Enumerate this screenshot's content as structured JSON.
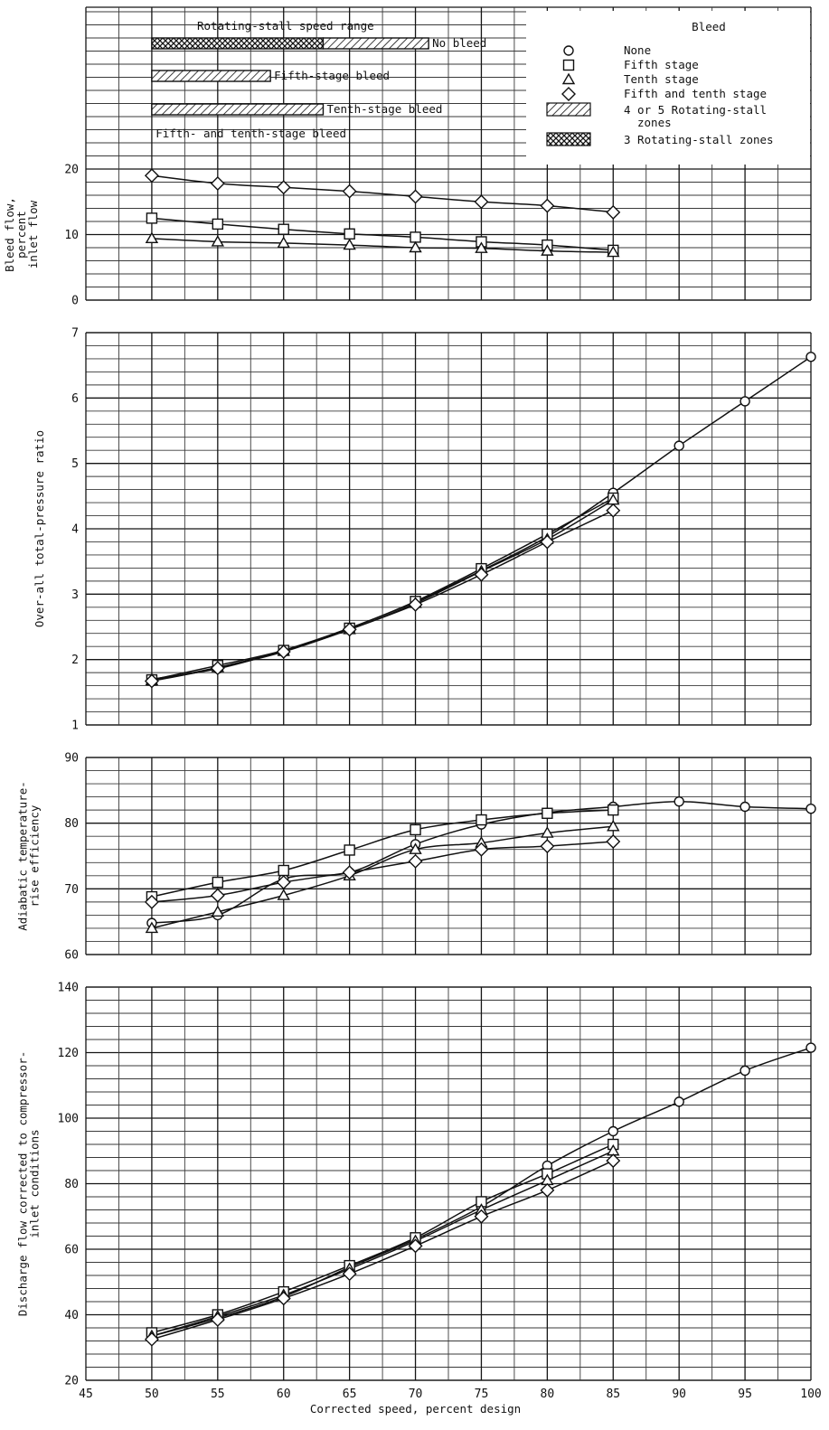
{
  "chart_data": {
    "type": "line",
    "x": [
      50,
      55,
      60,
      65,
      70,
      75,
      80,
      85,
      90,
      95,
      100
    ],
    "xlabel": "Corrected speed, percent design",
    "xlim": [
      45,
      100
    ],
    "xticks": [
      45,
      50,
      55,
      60,
      65,
      70,
      75,
      80,
      85,
      90,
      95,
      100
    ],
    "legend": {
      "title": "Bleed",
      "entries": [
        {
          "label": "None",
          "marker": "circle"
        },
        {
          "label": "Fifth stage",
          "marker": "square"
        },
        {
          "label": "Tenth stage",
          "marker": "triangle"
        },
        {
          "label": "Fifth and tenth stage",
          "marker": "diamond"
        }
      ],
      "hatch_entries": [
        {
          "label_lines": [
            "4 or 5 Rotating-stall",
            "zones"
          ],
          "pattern": "diagonal"
        },
        {
          "label_lines": [
            "3 Rotating-stall zones"
          ],
          "pattern": "crosshatch"
        }
      ]
    },
    "stall_range": {
      "title": "Rotating-stall speed range",
      "bars": [
        {
          "label": "No bleed",
          "segments": [
            {
              "from": 50,
              "to": 63,
              "pattern": "crosshatch"
            },
            {
              "from": 63,
              "to": 71,
              "pattern": "diagonal"
            }
          ]
        },
        {
          "label": "Fifth-stage bleed",
          "segments": [
            {
              "from": 50,
              "to": 59,
              "pattern": "diagonal"
            }
          ]
        },
        {
          "label": "Tenth-stage bleed",
          "segments": [
            {
              "from": 50,
              "to": 63,
              "pattern": "diagonal"
            }
          ]
        },
        {
          "label": "Fifth- and tenth-stage bleed",
          "segments": []
        }
      ]
    },
    "panels": [
      {
        "id": "bleed",
        "ylabel_lines": [
          "Bleed flow,",
          "percent",
          "inlet flow"
        ],
        "ylim": [
          0,
          20
        ],
        "yticks": [
          0,
          10,
          20
        ],
        "series": [
          {
            "name": "Fifth and tenth stage",
            "marker": "diamond",
            "x": [
              50,
              55,
              60,
              65,
              70,
              75,
              80,
              85
            ],
            "y": [
              19.0,
              17.8,
              17.2,
              16.6,
              15.8,
              15.0,
              14.4,
              13.4
            ]
          },
          {
            "name": "Fifth stage",
            "marker": "square",
            "x": [
              50,
              55,
              60,
              65,
              70,
              75,
              80,
              85
            ],
            "y": [
              12.5,
              11.6,
              10.8,
              10.1,
              9.6,
              8.9,
              8.4,
              7.6
            ]
          },
          {
            "name": "Tenth stage",
            "marker": "triangle",
            "x": [
              50,
              55,
              60,
              65,
              70,
              75,
              80,
              85
            ],
            "y": [
              9.4,
              8.9,
              8.7,
              8.4,
              8.0,
              7.9,
              7.5,
              7.3
            ]
          }
        ]
      },
      {
        "id": "pressure",
        "ylabel_lines": [
          "Over-all total-pressure ratio"
        ],
        "ylim": [
          1,
          7
        ],
        "yticks": [
          1,
          2,
          3,
          4,
          5,
          6,
          7
        ],
        "series": [
          {
            "name": "None",
            "marker": "circle",
            "x": [
              50,
              55,
              60,
              65,
              70,
              75,
              80,
              85,
              90,
              95,
              100
            ],
            "y": [
              1.7,
              1.86,
              2.14,
              2.48,
              2.88,
              3.36,
              3.88,
              4.55,
              5.27,
              5.95,
              6.63
            ]
          },
          {
            "name": "Fifth stage",
            "marker": "square",
            "x": [
              50,
              55,
              60,
              65,
              70,
              75,
              80,
              85
            ],
            "y": [
              1.69,
              1.91,
              2.14,
              2.48,
              2.89,
              3.39,
              3.92,
              4.47
            ]
          },
          {
            "name": "Tenth stage",
            "marker": "triangle",
            "x": [
              50,
              55,
              60,
              65,
              70,
              75,
              80,
              85
            ],
            "y": [
              1.68,
              1.88,
              2.13,
              2.46,
              2.86,
              3.35,
              3.84,
              4.44
            ]
          },
          {
            "name": "Fifth and tenth stage",
            "marker": "diamond",
            "x": [
              50,
              55,
              60,
              65,
              70,
              75,
              80,
              85
            ],
            "y": [
              1.67,
              1.87,
              2.12,
              2.46,
              2.84,
              3.3,
              3.8,
              4.28
            ]
          }
        ]
      },
      {
        "id": "efficiency",
        "ylabel_lines": [
          "Adiabatic temperature-",
          "rise efficiency"
        ],
        "ylim": [
          60,
          90
        ],
        "yticks": [
          60,
          70,
          80,
          90
        ],
        "series": [
          {
            "name": "None",
            "marker": "circle",
            "x": [
              50,
              55,
              60,
              65,
              70,
              75,
              80,
              85,
              90,
              95,
              100
            ],
            "y": [
              64.8,
              66.0,
              71.5,
              72.5,
              76.8,
              79.8,
              81.6,
              82.5,
              83.3,
              82.5,
              82.2
            ]
          },
          {
            "name": "Fifth stage",
            "marker": "square",
            "x": [
              50,
              55,
              60,
              65,
              70,
              75,
              80,
              85
            ],
            "y": [
              68.8,
              71.0,
              72.8,
              75.9,
              79.0,
              80.5,
              81.5,
              82.0
            ]
          },
          {
            "name": "Tenth stage",
            "marker": "triangle",
            "x": [
              50,
              55,
              60,
              65,
              70,
              75,
              80,
              85
            ],
            "y": [
              64.0,
              66.5,
              69.0,
              72.0,
              76.0,
              77.0,
              78.5,
              79.5
            ]
          },
          {
            "name": "Fifth and tenth stage",
            "marker": "diamond",
            "x": [
              50,
              55,
              60,
              65,
              70,
              75,
              80,
              85
            ],
            "y": [
              68.0,
              69.0,
              71.0,
              72.5,
              74.2,
              76.0,
              76.5,
              77.2
            ]
          }
        ]
      },
      {
        "id": "discharge",
        "ylabel_lines": [
          "Discharge flow corrected to compressor-",
          "inlet conditions"
        ],
        "ylim": [
          20,
          140
        ],
        "yticks": [
          20,
          40,
          60,
          80,
          100,
          120,
          140
        ],
        "series": [
          {
            "name": "None",
            "marker": "circle",
            "x": [
              50,
              55,
              60,
              65,
              70,
              75,
              80,
              85,
              90,
              95,
              100
            ],
            "y": [
              33.5,
              39.0,
              45.5,
              54.5,
              63.0,
              73.0,
              85.5,
              96.0,
              105.0,
              114.5,
              121.5
            ]
          },
          {
            "name": "Fifth stage",
            "marker": "square",
            "x": [
              50,
              55,
              60,
              65,
              70,
              75,
              80,
              85
            ],
            "y": [
              34.5,
              40.0,
              47.0,
              55.0,
              63.5,
              74.5,
              83.0,
              92.0
            ]
          },
          {
            "name": "Tenth stage",
            "marker": "triangle",
            "x": [
              50,
              55,
              60,
              65,
              70,
              75,
              80,
              85
            ],
            "y": [
              33.5,
              39.5,
              46.0,
              54.0,
              62.5,
              72.0,
              81.0,
              90.0
            ]
          },
          {
            "name": "Fifth and tenth stage",
            "marker": "diamond",
            "x": [
              50,
              55,
              60,
              65,
              70,
              75,
              80,
              85
            ],
            "y": [
              32.5,
              38.5,
              45.0,
              52.5,
              61.0,
              70.0,
              78.0,
              87.0
            ]
          }
        ]
      }
    ]
  }
}
